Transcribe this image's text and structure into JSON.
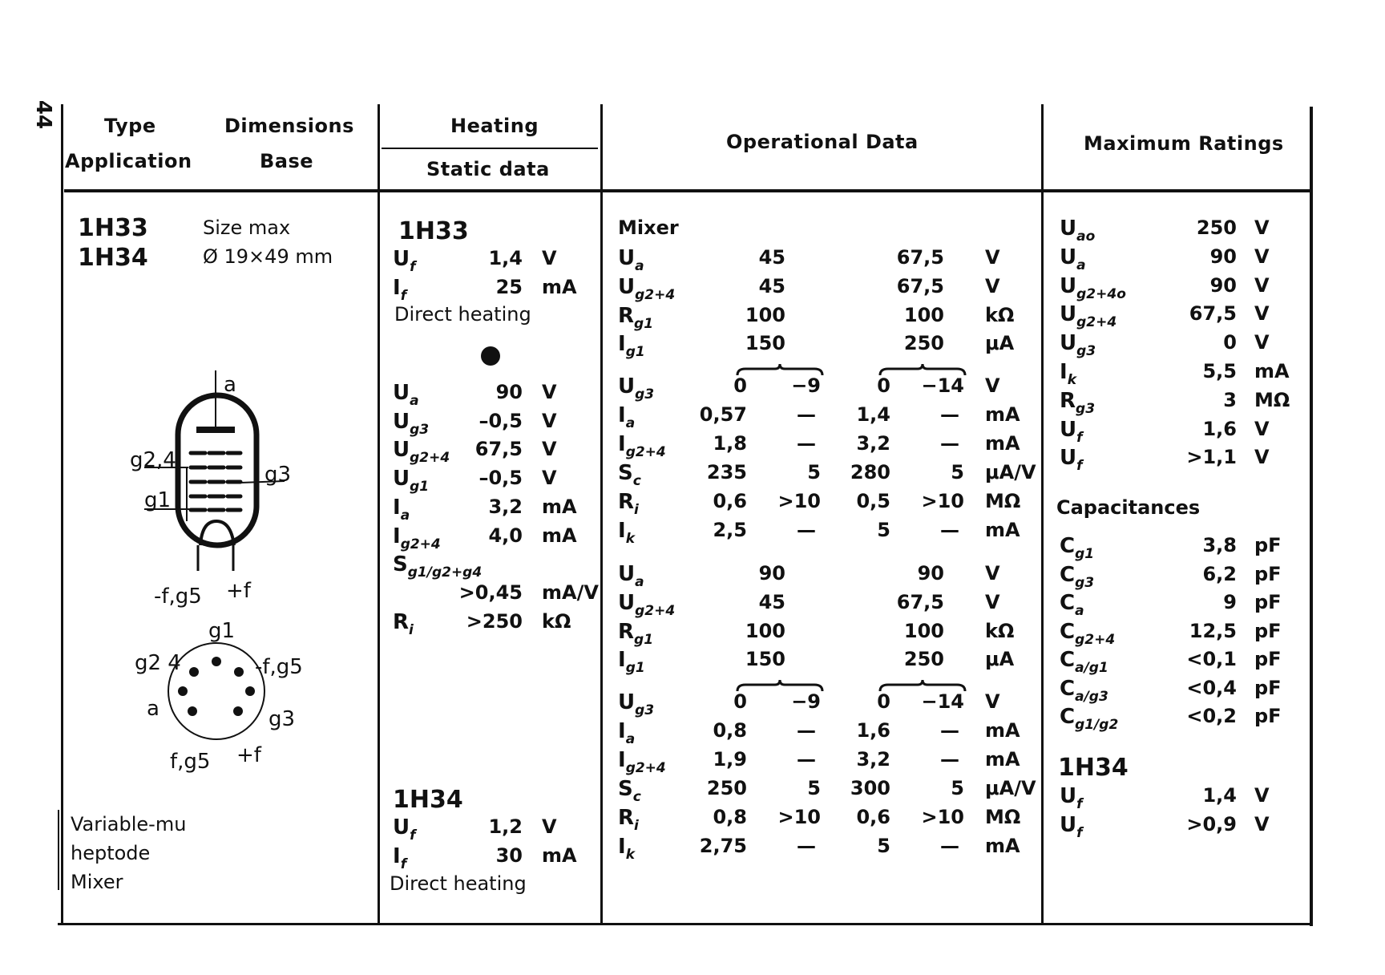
{
  "page_number": "44",
  "header": {
    "type": "Type",
    "dimensions": "Dimensions",
    "application": "Application",
    "base": "Base",
    "heating": "Heating",
    "static_data": "Static data",
    "operational_data": "Operational Data",
    "maximum_ratings": "Maximum Ratings"
  },
  "types": {
    "names": [
      "1H33",
      "1H34"
    ],
    "size_label": "Size max",
    "size_value": "Ø 19×49 mm",
    "application_lines": [
      "Variable-mu",
      "heptode",
      "Mixer"
    ]
  },
  "diagram": {
    "tube_labels": {
      "a": "a",
      "g24": "g2,4",
      "g3": "g3",
      "g1": "g1",
      "fg5_minus": "-f,g5",
      "f_plus": "+f"
    },
    "base_labels": {
      "g1": "g1",
      "g24": "g2 4",
      "fg5_minus": "-f,g5",
      "a": "a",
      "g3": "g3",
      "fg5": "f,g5",
      "f_plus": "+f"
    }
  },
  "static": {
    "h33_title": "1H33",
    "h33_heating": [
      {
        "sym": "U",
        "sub": "f",
        "value": "1,4",
        "unit": "V"
      },
      {
        "sym": "I",
        "sub": "f",
        "value": "25",
        "unit": "mA"
      }
    ],
    "h33_note": "Direct heating",
    "h33_data": [
      {
        "sym": "U",
        "sub": "a",
        "value": "90",
        "unit": "V"
      },
      {
        "sym": "U",
        "sub": "g3",
        "value": "–0,5",
        "unit": "V"
      },
      {
        "sym": "U",
        "sub": "g2+4",
        "value": "67,5",
        "unit": "V"
      },
      {
        "sym": "U",
        "sub": "g1",
        "value": "–0,5",
        "unit": "V"
      },
      {
        "sym": "I",
        "sub": "a",
        "value": "3,2",
        "unit": "mA"
      },
      {
        "sym": "I",
        "sub": "g2+4",
        "value": "4,0",
        "unit": "mA"
      },
      {
        "sym": "S",
        "sub": "g1/g2+g4",
        "value": "",
        "unit": ""
      },
      {
        "sym": "",
        "sub": "",
        "value": ">0,45",
        "unit": "mA/V"
      },
      {
        "sym": "R",
        "sub": "i",
        "value": ">250",
        "unit": "kΩ"
      }
    ],
    "h34_title": "1H34",
    "h34_heating": [
      {
        "sym": "U",
        "sub": "f",
        "value": "1,2",
        "unit": "V"
      },
      {
        "sym": "I",
        "sub": "f",
        "value": "30",
        "unit": "mA"
      }
    ],
    "h34_note": "Direct heating"
  },
  "operational": {
    "mode": "Mixer",
    "blocks": [
      {
        "top": [
          {
            "sym": "U",
            "sub": "a",
            "values": [
              "45",
              "67,5"
            ],
            "unit": "V"
          },
          {
            "sym": "U",
            "sub": "g2+4",
            "values": [
              "45",
              "67,5"
            ],
            "unit": "V"
          },
          {
            "sym": "R",
            "sub": "g1",
            "values": [
              "100",
              "100"
            ],
            "unit": "kΩ"
          },
          {
            "sym": "I",
            "sub": "g1",
            "values": [
              "150",
              "250"
            ],
            "unit": "μA"
          }
        ],
        "range": [
          {
            "sym": "U",
            "sub": "g3",
            "values": [
              "0",
              "−9",
              "0",
              "−14"
            ],
            "unit": "V"
          },
          {
            "sym": "I",
            "sub": "a",
            "values": [
              "0,57",
              "—",
              "1,4",
              "—"
            ],
            "unit": "mA"
          },
          {
            "sym": "I",
            "sub": "g2+4",
            "values": [
              "1,8",
              "—",
              "3,2",
              "—"
            ],
            "unit": "mA"
          },
          {
            "sym": "S",
            "sub": "c",
            "values": [
              "235",
              "5",
              "280",
              "5"
            ],
            "unit": "μA/V"
          },
          {
            "sym": "R",
            "sub": "i",
            "values": [
              "0,6",
              ">10",
              "0,5",
              ">10"
            ],
            "unit": "MΩ"
          },
          {
            "sym": "I",
            "sub": "k",
            "values": [
              "2,5",
              "—",
              "5",
              "—"
            ],
            "unit": "mA"
          }
        ]
      },
      {
        "top": [
          {
            "sym": "U",
            "sub": "a",
            "values": [
              "90",
              "90"
            ],
            "unit": "V"
          },
          {
            "sym": "U",
            "sub": "g2+4",
            "values": [
              "45",
              "67,5"
            ],
            "unit": "V"
          },
          {
            "sym": "R",
            "sub": "g1",
            "values": [
              "100",
              "100"
            ],
            "unit": "kΩ"
          },
          {
            "sym": "I",
            "sub": "g1",
            "values": [
              "150",
              "250"
            ],
            "unit": "μA"
          }
        ],
        "range": [
          {
            "sym": "U",
            "sub": "g3",
            "values": [
              "0",
              "−9",
              "0",
              "−14"
            ],
            "unit": "V"
          },
          {
            "sym": "I",
            "sub": "a",
            "values": [
              "0,8",
              "—",
              "1,6",
              "—"
            ],
            "unit": "mA"
          },
          {
            "sym": "I",
            "sub": "g2+4",
            "values": [
              "1,9",
              "—",
              "3,2",
              "—"
            ],
            "unit": "mA"
          },
          {
            "sym": "S",
            "sub": "c",
            "values": [
              "250",
              "5",
              "300",
              "5"
            ],
            "unit": "μA/V"
          },
          {
            "sym": "R",
            "sub": "i",
            "values": [
              "0,8",
              ">10",
              "0,6",
              ">10"
            ],
            "unit": "MΩ"
          },
          {
            "sym": "I",
            "sub": "k",
            "values": [
              "2,75",
              "—",
              "5",
              "—"
            ],
            "unit": "mA"
          }
        ]
      }
    ]
  },
  "maximum": {
    "ratings": [
      {
        "sym": "U",
        "sub": "ao",
        "value": "250",
        "unit": "V"
      },
      {
        "sym": "U",
        "sub": "a",
        "value": "90",
        "unit": "V"
      },
      {
        "sym": "U",
        "sub": "g2+4o",
        "value": "90",
        "unit": "V"
      },
      {
        "sym": "U",
        "sub": "g2+4",
        "value": "67,5",
        "unit": "V"
      },
      {
        "sym": "U",
        "sub": "g3",
        "value": "0",
        "unit": "V"
      },
      {
        "sym": "I",
        "sub": "k",
        "value": "5,5",
        "unit": "mA"
      },
      {
        "sym": "R",
        "sub": "g3",
        "value": "3",
        "unit": "MΩ"
      },
      {
        "sym": "U",
        "sub": "f",
        "value": "1,6",
        "unit": "V"
      },
      {
        "sym": "U",
        "sub": "f",
        "value": ">1,1",
        "unit": "V"
      }
    ],
    "capacitances_title": "Capacitances",
    "capacitances": [
      {
        "sym": "C",
        "sub": "g1",
        "value": "3,8",
        "unit": "pF"
      },
      {
        "sym": "C",
        "sub": "g3",
        "value": "6,2",
        "unit": "pF"
      },
      {
        "sym": "C",
        "sub": "a",
        "value": "9",
        "unit": "pF"
      },
      {
        "sym": "C",
        "sub": "g2+4",
        "value": "12,5",
        "unit": "pF"
      },
      {
        "sym": "C",
        "sub": "a/g1",
        "value": "<0,1",
        "unit": "pF"
      },
      {
        "sym": "C",
        "sub": "a/g3",
        "value": "<0,4",
        "unit": "pF"
      },
      {
        "sym": "C",
        "sub": "g1/g2",
        "value": "<0,2",
        "unit": "pF"
      }
    ],
    "h34_title": "1H34",
    "h34": [
      {
        "sym": "U",
        "sub": "f",
        "value": "1,4",
        "unit": "V"
      },
      {
        "sym": "U",
        "sub": "f",
        "value": ">0,9",
        "unit": "V"
      }
    ]
  }
}
